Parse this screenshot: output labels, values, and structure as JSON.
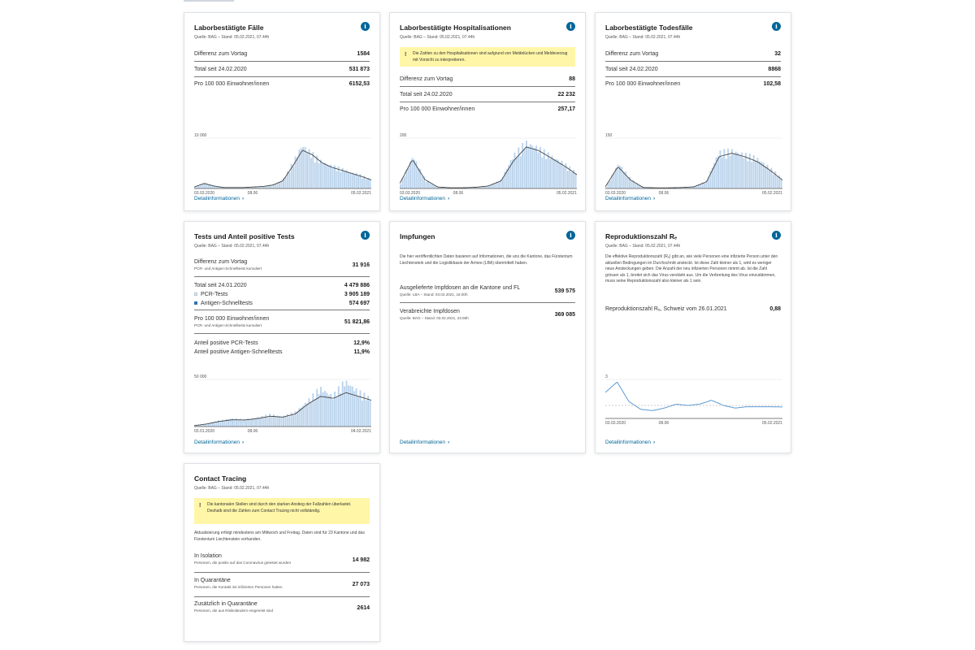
{
  "colors": {
    "accent": "#006699",
    "bar": "#bcd4ec",
    "line": "#444444",
    "rline": "#5b9bd5",
    "warn": "#fff6a8"
  },
  "icons": {
    "info": "info-icon",
    "warning": "warning-icon",
    "chevron": "chevron-right-icon"
  },
  "detail_label": "Detailinformationen",
  "source_bag": "Quelle: BAG – Stand: 05.02.2021, 07.44h",
  "cards": {
    "cases": {
      "title": "Laborbestätigte Fälle",
      "rows": [
        {
          "label": "Differenz zum Vortag",
          "value": "1584"
        },
        {
          "label": "Total seit 24.02.2020",
          "value": "531 873"
        },
        {
          "label": "Pro 100 000 Einwohner/innen",
          "value": "6152,53"
        }
      ]
    },
    "hosp": {
      "title": "Laborbestätigte Hospitalisationen",
      "warning": "Die Zahlen zu den Hospitalisationen sind aufgrund von Meldelücken und Meldeverzug mit Vorsicht zu interpretieren.",
      "rows": [
        {
          "label": "Differenz zum Vortag",
          "value": "88"
        },
        {
          "label": "Total seit 24.02.2020",
          "value": "22 232"
        },
        {
          "label": "Pro 100 000 Einwohner/innen",
          "value": "257,17"
        }
      ]
    },
    "deaths": {
      "title": "Laborbestätigte Todesfälle",
      "rows": [
        {
          "label": "Differenz zum Vortag",
          "value": "32"
        },
        {
          "label": "Total seit 24.02.2020",
          "value": "8868"
        },
        {
          "label": "Pro 100 000 Einwohner/innen",
          "value": "102,58"
        }
      ]
    },
    "tests": {
      "title": "Tests und Anteil positive Tests",
      "diff_label": "Differenz zum Vortag",
      "diff_sub": "PCR- und Antigen-Schnelltests kumuliert",
      "diff_value": "31 916",
      "total_label": "Total seit 24.01.2020",
      "total_value": "4 479 886",
      "pcr_label": "PCR-Tests",
      "pcr_value": "3 905 189",
      "antigen_label": "Antigen-Schnelltests",
      "antigen_value": "574 697",
      "per_label": "Pro 100 000 Einwohner/innen",
      "per_sub": "PCR- und Antigen-Schnelltests kumuliert",
      "per_value": "51 821,86",
      "pos_pcr_label": "Anteil positive PCR-Tests",
      "pos_pcr_value": "12,9%",
      "pos_ag_label": "Anteil positive Antigen-Schnelltests",
      "pos_ag_value": "11,9%"
    },
    "vacc": {
      "title": "Impfungen",
      "intro": "Die hier veröffentlichten Daten basieren auf Informationen, die uns die Kantone, das Fürstentum Liechtenstein und die Logistikbasis der Armee (LBA) übermittelt haben.",
      "delivered_label": "Ausgelieferte Impfdosen an die Kantone und FL",
      "delivered_source": "Quelle: LBA – Stand: 03.02.2021, 18.00h",
      "delivered_value": "539 575",
      "administered_label": "Verabreichte Impfdosen",
      "administered_source": "Quelle: BAG – Stand: 03.02.2021, 23.59h",
      "administered_value": "369 085"
    },
    "repro": {
      "title": "Reproduktionszahl Rₑ",
      "intro": "Die effektive Reproduktionszahl (Rₑ) gibt an, wie viele Personen eine infizierte Person unter den aktuellen Bedingungen im Durchschnitt ansteckt. Ist diese Zahl kleiner als 1, wird es weniger neue Ansteckungen geben. Die Anzahl der neu infizierten Personen nimmt ab. Ist die Zahl grösser als 1, breitet sich das Virus verstärkt aus. Um die Verbreitung des Virus einzudämmen, muss seine Reproduktionszahl also kleiner als 1 sein.",
      "value_label": "Reproduktionszahl Rₑ, Schweiz vom 26.01.2021",
      "value": "0,88"
    },
    "tracing": {
      "title": "Contact Tracing",
      "warning": "Die kantonalen Stellen sind durch den starken Anstieg der Fallzahlen überlastet. Deshalb sind die Zahlen zum Contact Tracing nicht vollständig.",
      "update": "Aktualisierung erfolgt mindestens am Mittwoch und Freitag. Daten sind für 23 Kantone und das Fürstentum Liechtenstein vorhanden.",
      "isolation_label": "In Isolation",
      "isolation_sub": "Personen, die positiv auf das Coronavirus getestet wurden",
      "isolation_value": "14 982",
      "quarantine_label": "In Quarantäne",
      "quarantine_sub": "Personen, die Kontakt mit infizierten Personen hatten",
      "quarantine_value": "27 073",
      "extra_label": "Zusätzlich in Quarantäne",
      "extra_sub": "Personen, die aus Risikoländern eingereist sind",
      "extra_value": "2614"
    }
  },
  "chart_data": [
    {
      "id": "cases",
      "type": "bar",
      "ymax_label": "10 000",
      "ylim": [
        0,
        10000
      ],
      "x_labels": [
        "03.03.2020",
        "08.06",
        "05.02.2021"
      ],
      "values": [
        300,
        1100,
        500,
        200,
        200,
        200,
        300,
        400,
        700,
        1500,
        4500,
        8000,
        6500,
        5000,
        4200,
        3700,
        3000,
        2500,
        1700
      ],
      "trend": [
        300,
        1000,
        500,
        200,
        200,
        200,
        300,
        400,
        700,
        1500,
        4400,
        7600,
        6700,
        5100,
        4200,
        3600,
        3000,
        2400,
        1700
      ]
    },
    {
      "id": "hosp",
      "type": "bar",
      "ymax_label": "200",
      "ylim": [
        0,
        200
      ],
      "x_labels": [
        "03.03.2020",
        "08.06",
        "05.02.2021"
      ],
      "values": [
        20,
        120,
        30,
        5,
        3,
        3,
        5,
        10,
        30,
        120,
        170,
        150,
        120,
        95,
        60
      ],
      "trend": [
        20,
        115,
        35,
        6,
        3,
        3,
        5,
        10,
        30,
        110,
        165,
        150,
        120,
        90,
        55
      ]
    },
    {
      "id": "deaths",
      "type": "bar",
      "ymax_label": "150",
      "ylim": [
        0,
        150
      ],
      "x_labels": [
        "03.03.2020",
        "08.06",
        "05.02.2021"
      ],
      "values": [
        5,
        70,
        25,
        3,
        2,
        2,
        3,
        5,
        20,
        100,
        105,
        95,
        85,
        60,
        30
      ],
      "trend": [
        5,
        65,
        25,
        3,
        2,
        2,
        3,
        5,
        20,
        95,
        105,
        95,
        80,
        55,
        25
      ]
    },
    {
      "id": "tests",
      "type": "bar",
      "ymax_label": "50 000",
      "ylim": [
        0,
        50000
      ],
      "x_labels": [
        "03.01.2020",
        "08.06",
        "04.02.2021"
      ],
      "values": [
        1000,
        3000,
        6000,
        8000,
        7000,
        9000,
        12000,
        10000,
        14000,
        25000,
        38000,
        30000,
        45000,
        35000,
        28000
      ],
      "trend": [
        1000,
        2800,
        5500,
        7200,
        7000,
        8500,
        11000,
        10000,
        13500,
        24000,
        32000,
        30000,
        36000,
        32000,
        28000
      ]
    },
    {
      "id": "repro",
      "type": "line",
      "ymax_label": "3",
      "ylim": [
        0,
        3
      ],
      "x_labels": [
        "03.03.2020",
        "08.06",
        "05.02.2021"
      ],
      "values": [
        2.0,
        2.8,
        1.3,
        0.7,
        0.6,
        0.8,
        1.1,
        1.0,
        1.1,
        1.4,
        1.0,
        0.8,
        0.9,
        0.9,
        0.9,
        0.88
      ]
    }
  ]
}
